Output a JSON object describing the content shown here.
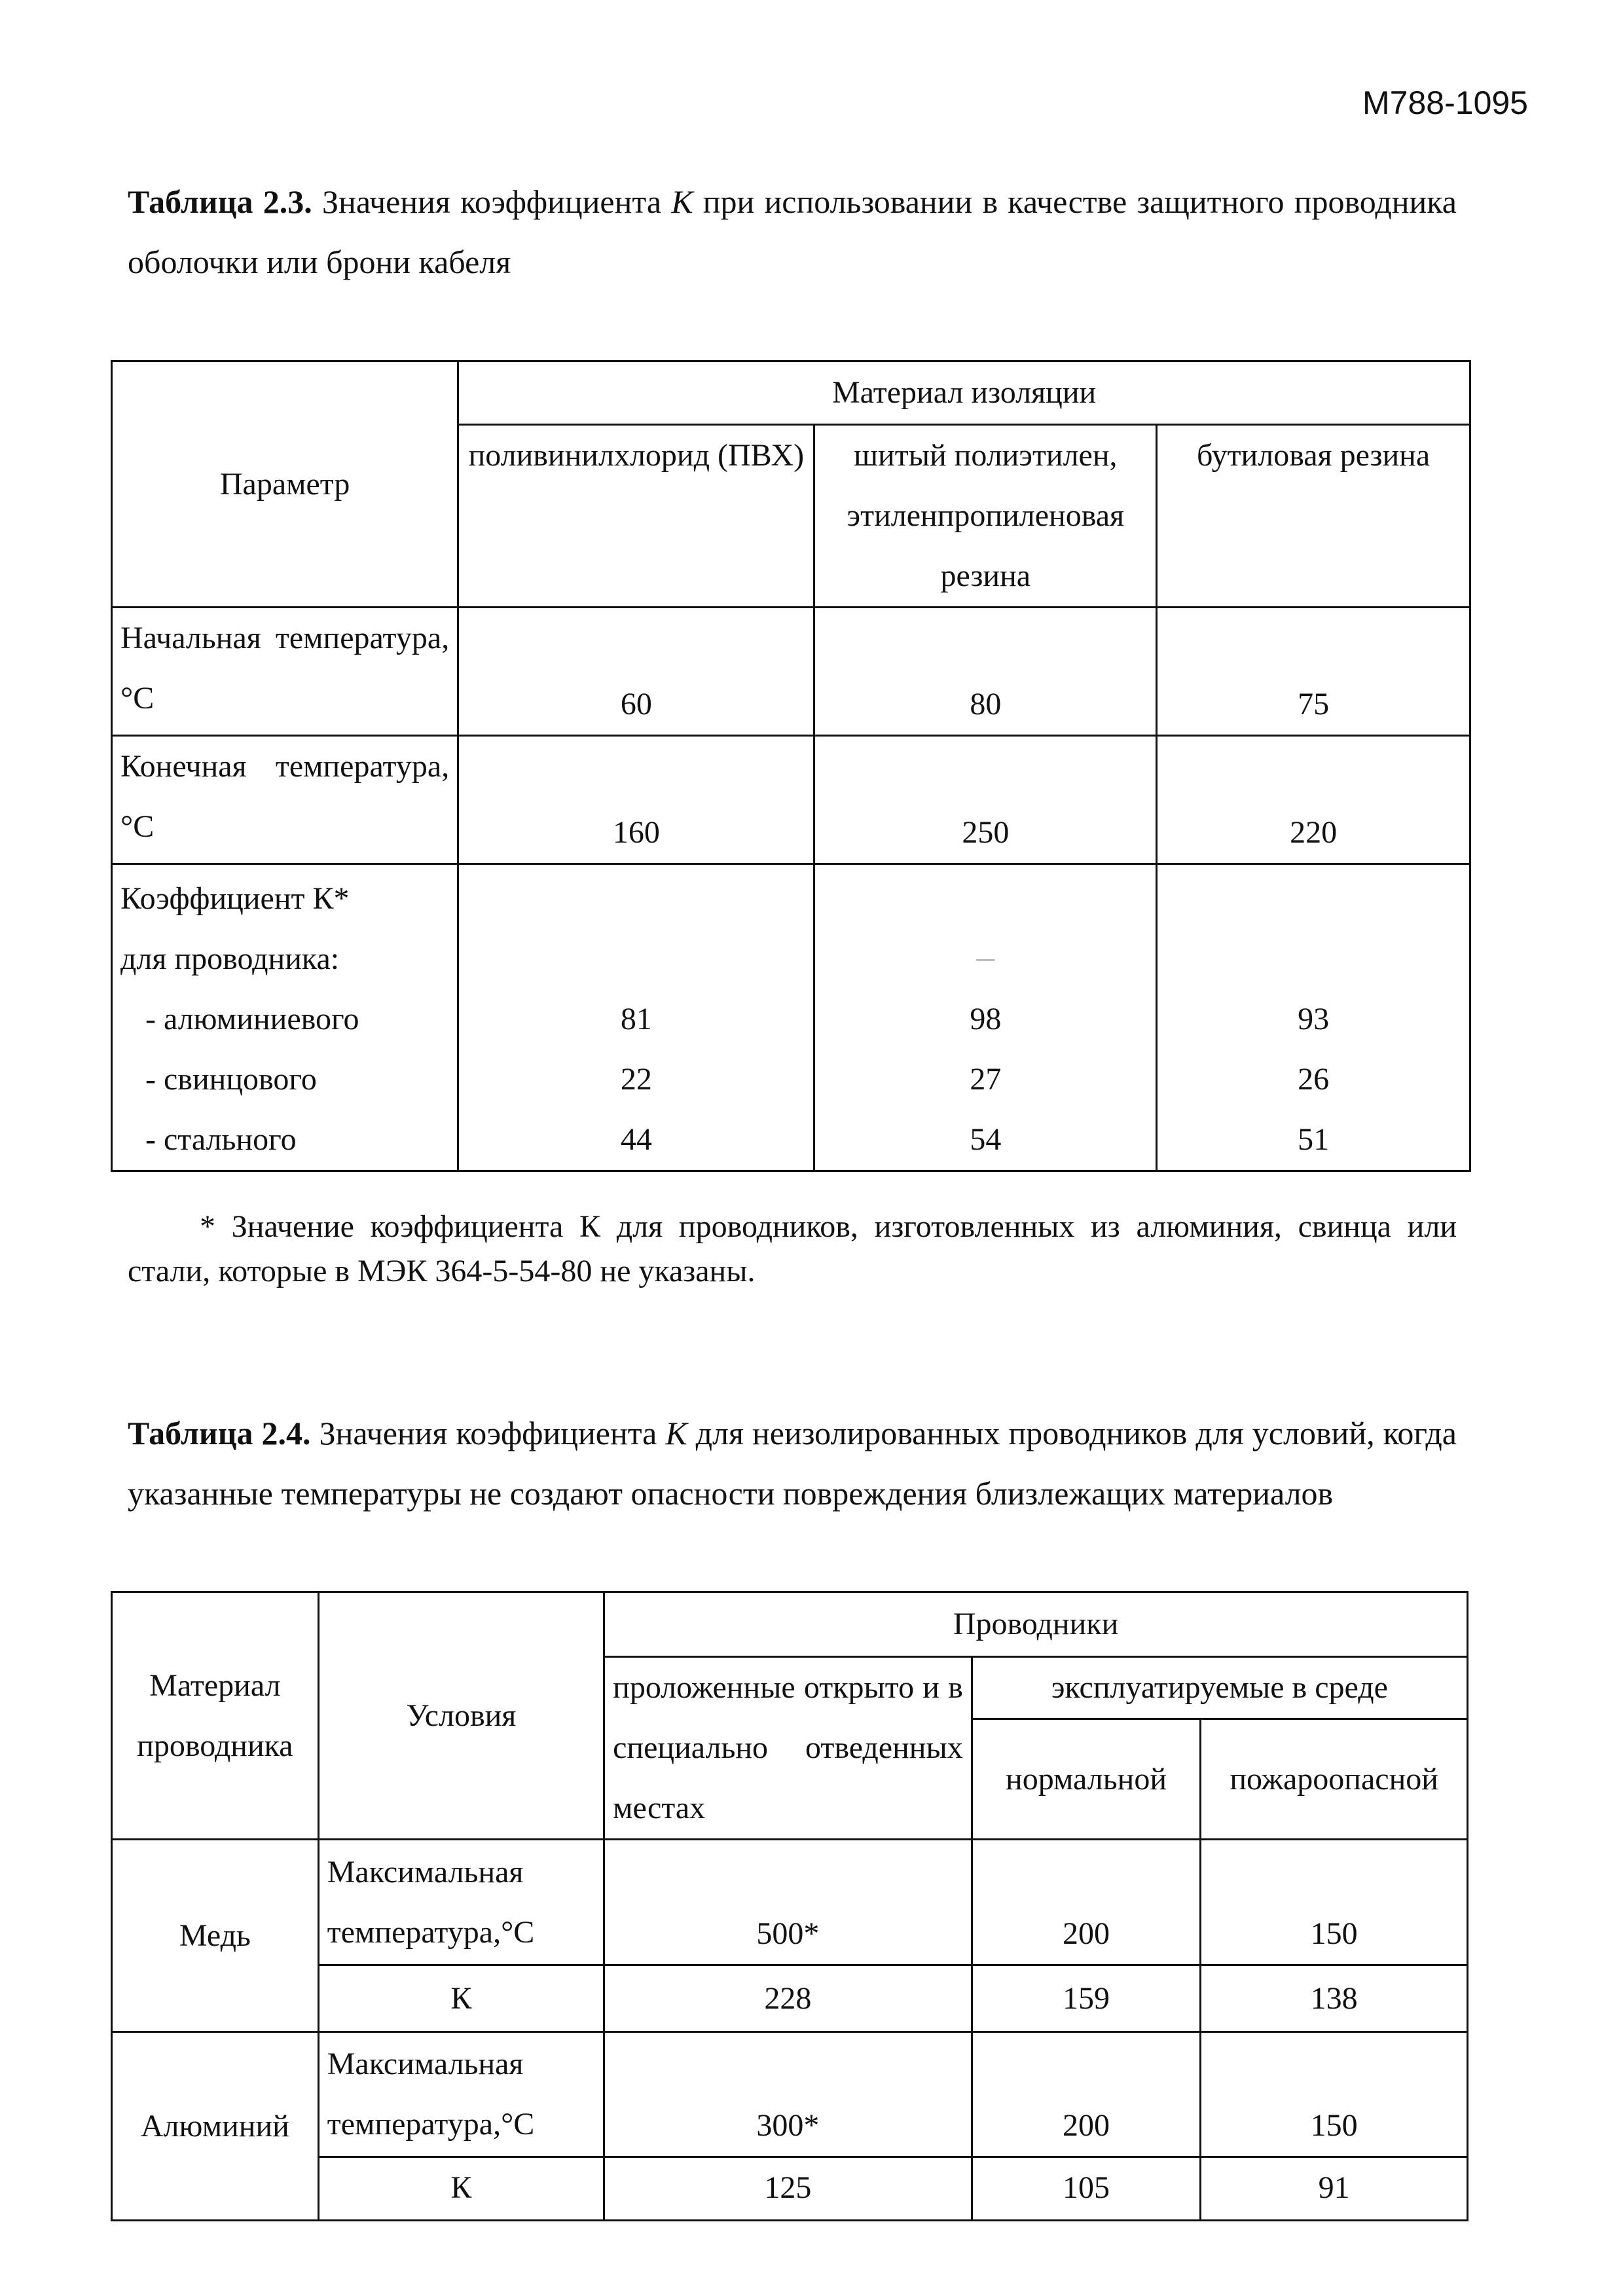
{
  "header": {
    "doc_code": "М788-1095"
  },
  "table_2_3": {
    "caption_label": "Таблица 2.3.",
    "caption_text_1": "Значения коэффициента ",
    "caption_k": "К",
    "caption_text_2": " при использовании в качестве защитного проводника оболочки или брони кабеля",
    "param_header": "Параметр",
    "group_header": "Материал изоляции",
    "columns": [
      "поливинилхлорид (ПВХ)",
      "шитый полиэтилен, этиленпропиленовая резина",
      "бутиловая резина"
    ],
    "rows": [
      {
        "label": "Начальная температура, °С",
        "values": [
          "60",
          "80",
          "75"
        ]
      },
      {
        "label": "Конечная температура, °С",
        "values": [
          "160",
          "250",
          "220"
        ]
      }
    ],
    "k_row": {
      "label_1": "Коэффициент К*",
      "label_2": "для проводника:",
      "dash": "—",
      "sub": [
        {
          "label": "- алюминиевого",
          "values": [
            "81",
            "98",
            "93"
          ]
        },
        {
          "label": "- свинцового",
          "values": [
            "22",
            "27",
            "26"
          ]
        },
        {
          "label": "- стального",
          "values": [
            "44",
            "54",
            "51"
          ]
        }
      ]
    },
    "footnote": "* Значение коэффициента К для проводников, изготовленных из алюминия, свинца или стали, которые в МЭК 364-5-54-80 не указаны."
  },
  "table_2_4": {
    "caption_label": "Таблица 2.4.",
    "caption_text_1": "Значения коэффициента ",
    "caption_k": "К",
    "caption_text_2": " для неизолированных проводников для условий, когда указанные температуры не создают опасности повреждения близлежащих материалов",
    "col_material": "Материал проводника",
    "col_conditions": "Условия",
    "group_header": "Проводники",
    "col_open": "проложенные открыто и в специально отведенных местах",
    "col_env_group": "эксплуатируемые в среде",
    "col_normal": "нормальной",
    "col_fire": "пожароопасной",
    "materials": [
      {
        "name": "Медь",
        "cond_temp": "Максимальная температура,°С",
        "temp": [
          "500*",
          "200",
          "150"
        ],
        "cond_k": "К",
        "k": [
          "228",
          "159",
          "138"
        ]
      },
      {
        "name": "Алюминий",
        "cond_temp": "Максимальная температура,°С",
        "temp": [
          "300*",
          "200",
          "150"
        ],
        "cond_k": "К",
        "k": [
          "125",
          "105",
          "91"
        ]
      }
    ]
  }
}
